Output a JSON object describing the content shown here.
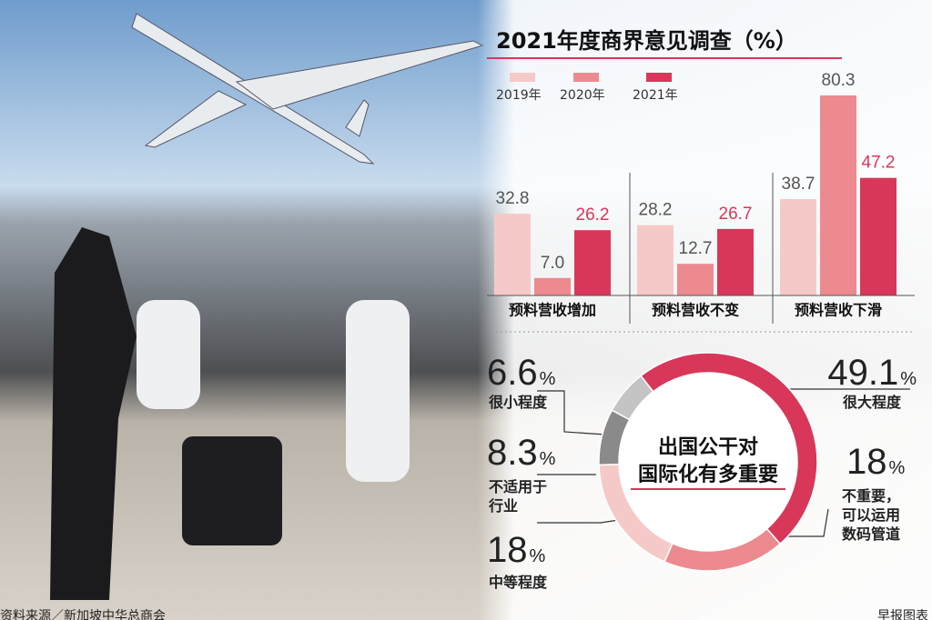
{
  "chart_data": [
    {
      "type": "bar",
      "title": "2021年度商界意见调查（%）",
      "categories": [
        "预料营收增加",
        "预料营收不变",
        "预料营收下滑"
      ],
      "series": [
        {
          "name": "2019年",
          "color": "#f6c9c9",
          "values": [
            32.8,
            28.2,
            38.7
          ]
        },
        {
          "name": "2020年",
          "color": "#ec8a8f",
          "values": [
            7,
            12.7,
            80.3
          ],
          "value_labels": [
            "7.0",
            "12.7",
            "80.3"
          ]
        },
        {
          "name": "2021年",
          "color": "#d8375a",
          "values": [
            26.2,
            26.7,
            47.2
          ]
        }
      ]
    },
    {
      "type": "donut",
      "title": [
        "出国公干对",
        "国际化有多重要"
      ],
      "categories": [
        "很大程度",
        "不重要，可以运用数码管道",
        "中等程度",
        "不适用于行业",
        "很小程度"
      ],
      "values": [
        49.1,
        18,
        18,
        8.3,
        6.6
      ],
      "value_labels": [
        "49.1%",
        "18%",
        "18%",
        "8.3%",
        "6.6%"
      ],
      "colors": [
        "#d8375a",
        "#ec8a8f",
        "#f6c9c9",
        "#8a8a8a",
        "#c4c4c4"
      ]
    }
  ],
  "source": "资料来源／新加坡中华总商会",
  "credit": "早报图表"
}
